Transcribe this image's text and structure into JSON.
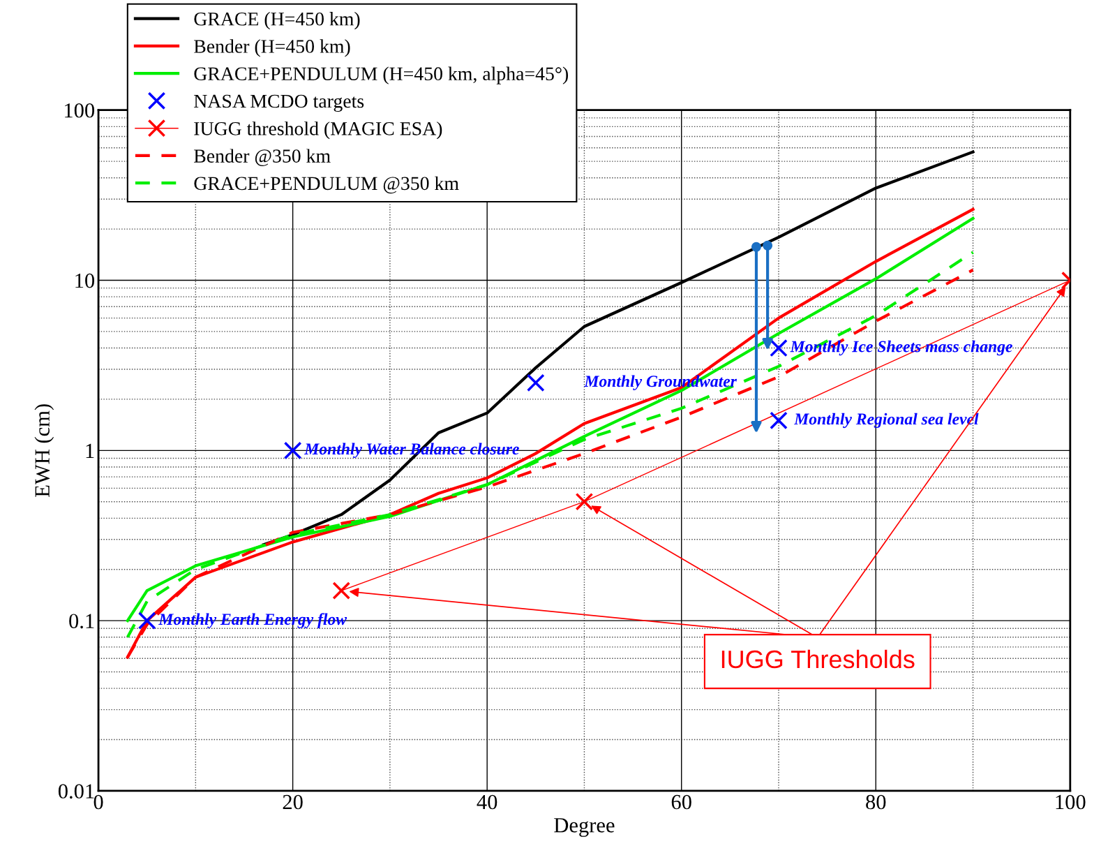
{
  "chart_data": {
    "type": "line",
    "xlabel": "Degree",
    "ylabel": "EWH (cm)",
    "log": "y",
    "xlim": [
      0,
      100
    ],
    "xticks": [
      0,
      20,
      40,
      60,
      80,
      100
    ],
    "ylim": [
      0.01,
      100
    ],
    "yticks": [
      {
        "value": 0.01,
        "label": "0.01"
      },
      {
        "value": 0.1,
        "label": "0.1"
      },
      {
        "value": 1,
        "label": "1"
      },
      {
        "value": 10,
        "label": "10"
      },
      {
        "value": 100,
        "label": "100"
      }
    ],
    "grid": true,
    "legend": "top left",
    "series": [
      {
        "name": "GRACE (H=450 km)",
        "color": "#000000",
        "line_style": "solid",
        "x": [
          17,
          20,
          25,
          30,
          35,
          40,
          45,
          50,
          60,
          70,
          80,
          90
        ],
        "values": [
          0.28,
          0.32,
          0.42,
          0.67,
          1.27,
          1.66,
          3.06,
          5.35,
          9.7,
          17.9,
          34.8,
          56.8
        ]
      },
      {
        "name": "Bender (H=450 km)",
        "color": "#ff0000",
        "line_style": "solid",
        "x": [
          3,
          5,
          10,
          20,
          30,
          35,
          40,
          45,
          50,
          60,
          70,
          80,
          90
        ],
        "values": [
          0.061,
          0.1,
          0.18,
          0.29,
          0.42,
          0.56,
          0.69,
          0.96,
          1.44,
          2.34,
          6.0,
          12.9,
          26.1
        ]
      },
      {
        "name": "GRACE+PENDULUM (H=450 km, alpha=45°)",
        "color": "#00ee00",
        "line_style": "solid",
        "x": [
          3,
          5,
          10,
          20,
          30,
          40,
          50,
          60,
          70,
          80,
          90
        ],
        "values": [
          0.1,
          0.15,
          0.21,
          0.31,
          0.41,
          0.63,
          1.21,
          2.25,
          4.87,
          10.2,
          23.1
        ]
      },
      {
        "name": "NASA MCDO targets",
        "color": "#0000ff",
        "type": "scatter",
        "marker": "cross",
        "x": [
          5,
          20,
          45,
          70,
          70
        ],
        "values": [
          0.1,
          1,
          2.5,
          4,
          1.5
        ]
      },
      {
        "name": "IUGG threshold (MAGIC ESA)",
        "color": "#ff0000",
        "line_style": "solid",
        "marker": "cross",
        "x": [
          25,
          50,
          100
        ],
        "values": [
          0.15,
          0.5,
          10
        ]
      },
      {
        "name": "Bender @350 km",
        "color": "#ff0000",
        "line_style": "dashed",
        "x": [
          3,
          5,
          10,
          20,
          30,
          40,
          50,
          60,
          70,
          80,
          90
        ],
        "values": [
          0.061,
          0.095,
          0.18,
          0.33,
          0.42,
          0.61,
          0.96,
          1.57,
          2.71,
          5.75,
          11.5
        ]
      },
      {
        "name": "GRACE+PENDULUM @350 km",
        "color": "#00ee00",
        "line_style": "dashed",
        "x": [
          3,
          5,
          10,
          20,
          30,
          40,
          50,
          60,
          70,
          80,
          90
        ],
        "values": [
          0.08,
          0.13,
          0.2,
          0.32,
          0.42,
          0.63,
          1.16,
          1.77,
          3.12,
          6.2,
          14.6
        ]
      }
    ],
    "annotations": [
      {
        "text": "Monthly Earth Energy flow",
        "x": 5,
        "y": 0.1
      },
      {
        "text": "Monthly Water Balance closure",
        "x": 20,
        "y": 1
      },
      {
        "text": "Monthly Groundwater",
        "x": 45,
        "y": 2.5
      },
      {
        "text": "Monthly Ice Sheets mass change",
        "x": 70,
        "y": 4
      },
      {
        "text": "Monthly Regional sea level",
        "x": 70,
        "y": 1.5
      },
      "IUGG Thresholds"
    ]
  }
}
